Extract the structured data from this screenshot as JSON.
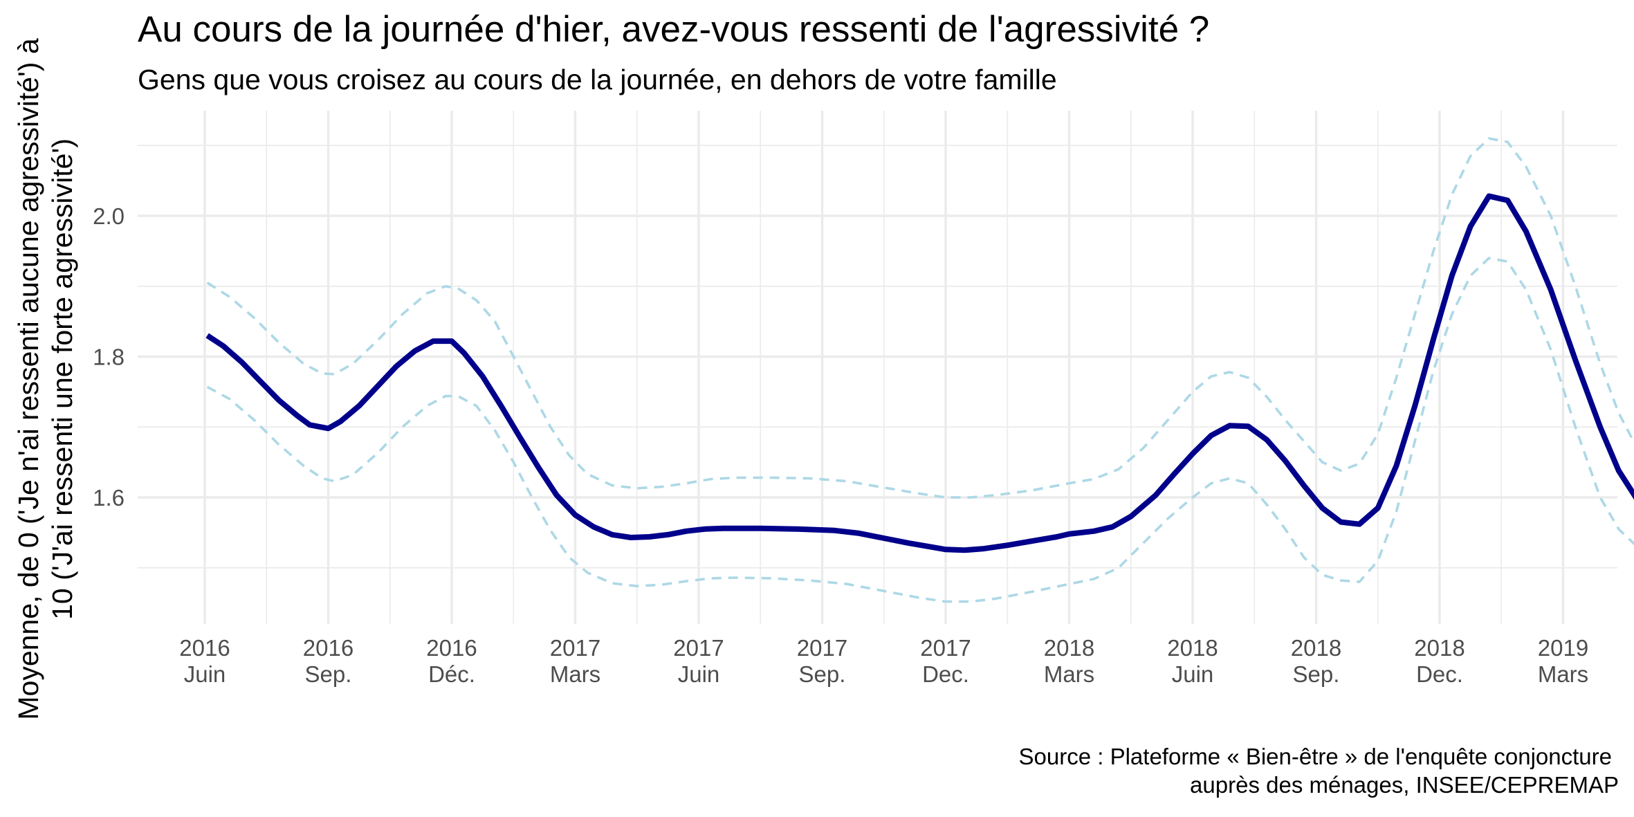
{
  "chart_data": {
    "type": "line",
    "title": "Au cours de la journée d'hier, avez-vous ressenti de l'agressivité ?",
    "subtitle": "Gens que vous croisez au cours de la journée, en dehors de votre famille",
    "ylabel_line1": "Moyenne, de 0 ('Je n'ai ressenti aucune agressivité') à",
    "ylabel_line2": "10 ('J'ai ressenti une forte agressivité')",
    "caption_line1": "Source : Plateforme « Bien-être » de l'enquête conjoncture",
    "caption_line2": "auprès des ménages, INSEE/CEPREMAP",
    "ylim": [
      1.42,
      2.15
    ],
    "yticks": [
      1.6,
      1.8,
      2.0
    ],
    "ytick_labels": [
      "1.6",
      "1.8",
      "2.0"
    ],
    "xlim": [
      -0.55,
      11.55
    ],
    "xticks": [
      {
        "x": 0,
        "line1": "2016",
        "line2": "Juin"
      },
      {
        "x": 1,
        "line1": "2016",
        "line2": "Sep."
      },
      {
        "x": 2,
        "line1": "2016",
        "line2": "Déc."
      },
      {
        "x": 3,
        "line1": "2017",
        "line2": "Mars"
      },
      {
        "x": 4,
        "line1": "2017",
        "line2": "Juin"
      },
      {
        "x": 5,
        "line1": "2017",
        "line2": "Sep."
      },
      {
        "x": 6,
        "line1": "2017",
        "line2": "Dec."
      },
      {
        "x": 7,
        "line1": "2018",
        "line2": "Mars"
      },
      {
        "x": 8,
        "line1": "2018",
        "line2": "Juin"
      },
      {
        "x": 9,
        "line1": "2018",
        "line2": "Sep."
      },
      {
        "x": 10,
        "line1": "2018",
        "line2": "Dec."
      },
      {
        "x": 11,
        "line1": "2019",
        "line2": "Mars"
      }
    ],
    "grid": true,
    "colors": {
      "mean": "#00008b",
      "band": "#add8e6"
    },
    "series": [
      {
        "role": "mean",
        "points": [
          [
            0.02,
            1.83
          ],
          [
            0.15,
            1.815
          ],
          [
            0.3,
            1.792
          ],
          [
            0.45,
            1.765
          ],
          [
            0.6,
            1.738
          ],
          [
            0.75,
            1.716
          ],
          [
            0.85,
            1.703
          ],
          [
            1.0,
            1.698
          ],
          [
            1.1,
            1.708
          ],
          [
            1.25,
            1.73
          ],
          [
            1.4,
            1.758
          ],
          [
            1.55,
            1.786
          ],
          [
            1.7,
            1.808
          ],
          [
            1.85,
            1.822
          ],
          [
            2.0,
            1.822
          ],
          [
            2.1,
            1.805
          ],
          [
            2.25,
            1.772
          ],
          [
            2.4,
            1.73
          ],
          [
            2.55,
            1.686
          ],
          [
            2.7,
            1.643
          ],
          [
            2.85,
            1.603
          ],
          [
            3.0,
            1.575
          ],
          [
            3.15,
            1.558
          ],
          [
            3.3,
            1.547
          ],
          [
            3.45,
            1.543
          ],
          [
            3.6,
            1.544
          ],
          [
            3.75,
            1.547
          ],
          [
            3.9,
            1.552
          ],
          [
            4.05,
            1.555
          ],
          [
            4.2,
            1.556
          ],
          [
            4.5,
            1.556
          ],
          [
            4.8,
            1.555
          ],
          [
            5.1,
            1.553
          ],
          [
            5.3,
            1.549
          ],
          [
            5.5,
            1.542
          ],
          [
            5.7,
            1.535
          ],
          [
            5.9,
            1.529
          ],
          [
            6.0,
            1.526
          ],
          [
            6.15,
            1.525
          ],
          [
            6.3,
            1.527
          ],
          [
            6.5,
            1.532
          ],
          [
            6.7,
            1.538
          ],
          [
            6.9,
            1.544
          ],
          [
            7.0,
            1.548
          ],
          [
            7.2,
            1.552
          ],
          [
            7.35,
            1.558
          ],
          [
            7.5,
            1.573
          ],
          [
            7.7,
            1.603
          ],
          [
            7.85,
            1.633
          ],
          [
            8.0,
            1.662
          ],
          [
            8.15,
            1.688
          ],
          [
            8.3,
            1.702
          ],
          [
            8.45,
            1.701
          ],
          [
            8.6,
            1.682
          ],
          [
            8.75,
            1.652
          ],
          [
            8.9,
            1.617
          ],
          [
            9.05,
            1.585
          ],
          [
            9.2,
            1.565
          ],
          [
            9.35,
            1.562
          ],
          [
            9.5,
            1.585
          ],
          [
            9.65,
            1.645
          ],
          [
            9.8,
            1.73
          ],
          [
            9.95,
            1.825
          ],
          [
            10.1,
            1.915
          ],
          [
            10.25,
            1.985
          ],
          [
            10.4,
            2.028
          ],
          [
            10.55,
            2.022
          ],
          [
            10.7,
            1.978
          ],
          [
            10.9,
            1.895
          ],
          [
            11.1,
            1.795
          ],
          [
            11.3,
            1.7
          ],
          [
            11.45,
            1.638
          ],
          [
            11.6,
            1.597
          ]
        ]
      },
      {
        "role": "upper",
        "points": [
          [
            0.02,
            1.905
          ],
          [
            0.2,
            1.885
          ],
          [
            0.4,
            1.855
          ],
          [
            0.6,
            1.82
          ],
          [
            0.8,
            1.79
          ],
          [
            0.95,
            1.776
          ],
          [
            1.05,
            1.775
          ],
          [
            1.2,
            1.79
          ],
          [
            1.4,
            1.823
          ],
          [
            1.6,
            1.86
          ],
          [
            1.8,
            1.89
          ],
          [
            1.95,
            1.9
          ],
          [
            2.05,
            1.897
          ],
          [
            2.2,
            1.88
          ],
          [
            2.35,
            1.85
          ],
          [
            2.5,
            1.8
          ],
          [
            2.65,
            1.75
          ],
          [
            2.8,
            1.7
          ],
          [
            2.95,
            1.66
          ],
          [
            3.1,
            1.633
          ],
          [
            3.3,
            1.617
          ],
          [
            3.5,
            1.613
          ],
          [
            3.7,
            1.615
          ],
          [
            3.9,
            1.62
          ],
          [
            4.1,
            1.626
          ],
          [
            4.3,
            1.628
          ],
          [
            4.6,
            1.628
          ],
          [
            4.9,
            1.627
          ],
          [
            5.2,
            1.623
          ],
          [
            5.5,
            1.614
          ],
          [
            5.8,
            1.605
          ],
          [
            6.0,
            1.6
          ],
          [
            6.2,
            1.6
          ],
          [
            6.4,
            1.603
          ],
          [
            6.7,
            1.61
          ],
          [
            7.0,
            1.62
          ],
          [
            7.2,
            1.626
          ],
          [
            7.4,
            1.64
          ],
          [
            7.6,
            1.67
          ],
          [
            7.8,
            1.71
          ],
          [
            8.0,
            1.75
          ],
          [
            8.15,
            1.772
          ],
          [
            8.3,
            1.778
          ],
          [
            8.45,
            1.77
          ],
          [
            8.6,
            1.743
          ],
          [
            8.75,
            1.71
          ],
          [
            8.9,
            1.68
          ],
          [
            9.05,
            1.65
          ],
          [
            9.2,
            1.638
          ],
          [
            9.35,
            1.648
          ],
          [
            9.5,
            1.69
          ],
          [
            9.65,
            1.77
          ],
          [
            9.8,
            1.86
          ],
          [
            9.95,
            1.95
          ],
          [
            10.1,
            2.03
          ],
          [
            10.25,
            2.085
          ],
          [
            10.4,
            2.11
          ],
          [
            10.55,
            2.105
          ],
          [
            10.7,
            2.07
          ],
          [
            10.9,
            2.0
          ],
          [
            11.1,
            1.9
          ],
          [
            11.3,
            1.79
          ],
          [
            11.45,
            1.72
          ],
          [
            11.6,
            1.67
          ]
        ]
      },
      {
        "role": "lower",
        "points": [
          [
            0.02,
            1.757
          ],
          [
            0.2,
            1.74
          ],
          [
            0.4,
            1.71
          ],
          [
            0.6,
            1.675
          ],
          [
            0.8,
            1.645
          ],
          [
            0.95,
            1.627
          ],
          [
            1.05,
            1.623
          ],
          [
            1.2,
            1.632
          ],
          [
            1.4,
            1.663
          ],
          [
            1.6,
            1.7
          ],
          [
            1.8,
            1.73
          ],
          [
            1.95,
            1.744
          ],
          [
            2.05,
            1.744
          ],
          [
            2.2,
            1.73
          ],
          [
            2.35,
            1.695
          ],
          [
            2.5,
            1.65
          ],
          [
            2.65,
            1.6
          ],
          [
            2.8,
            1.553
          ],
          [
            2.95,
            1.515
          ],
          [
            3.1,
            1.493
          ],
          [
            3.3,
            1.478
          ],
          [
            3.5,
            1.474
          ],
          [
            3.7,
            1.476
          ],
          [
            3.9,
            1.481
          ],
          [
            4.1,
            1.485
          ],
          [
            4.3,
            1.486
          ],
          [
            4.6,
            1.485
          ],
          [
            4.9,
            1.482
          ],
          [
            5.2,
            1.477
          ],
          [
            5.5,
            1.467
          ],
          [
            5.8,
            1.457
          ],
          [
            6.0,
            1.452
          ],
          [
            6.2,
            1.452
          ],
          [
            6.4,
            1.456
          ],
          [
            6.7,
            1.466
          ],
          [
            7.0,
            1.477
          ],
          [
            7.2,
            1.484
          ],
          [
            7.4,
            1.5
          ],
          [
            7.6,
            1.535
          ],
          [
            7.8,
            1.57
          ],
          [
            8.0,
            1.6
          ],
          [
            8.15,
            1.62
          ],
          [
            8.3,
            1.627
          ],
          [
            8.45,
            1.62
          ],
          [
            8.6,
            1.59
          ],
          [
            8.75,
            1.555
          ],
          [
            8.9,
            1.515
          ],
          [
            9.05,
            1.49
          ],
          [
            9.2,
            1.482
          ],
          [
            9.35,
            1.48
          ],
          [
            9.5,
            1.51
          ],
          [
            9.65,
            1.58
          ],
          [
            9.8,
            1.68
          ],
          [
            9.95,
            1.78
          ],
          [
            10.1,
            1.86
          ],
          [
            10.25,
            1.915
          ],
          [
            10.4,
            1.94
          ],
          [
            10.55,
            1.935
          ],
          [
            10.7,
            1.895
          ],
          [
            10.9,
            1.81
          ],
          [
            11.1,
            1.7
          ],
          [
            11.3,
            1.6
          ],
          [
            11.45,
            1.555
          ],
          [
            11.6,
            1.53
          ]
        ]
      }
    ]
  }
}
